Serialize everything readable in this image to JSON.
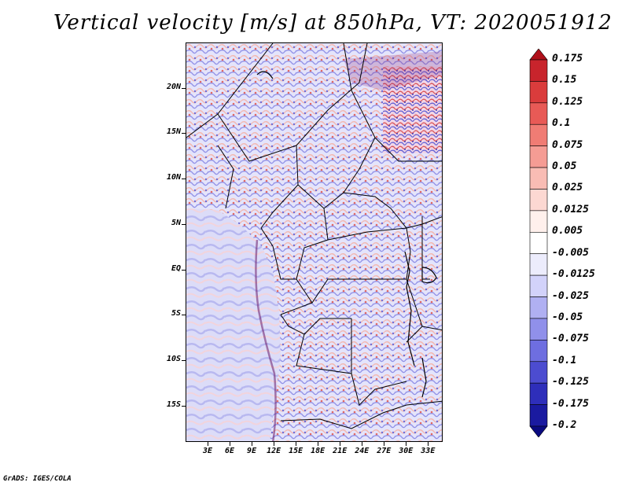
{
  "title": "Vertical velocity [m/s] at 850hPa, VT: 2020051912",
  "credit": "GrADS: IGES/COLA",
  "map": {
    "lat_range": [
      -19,
      25
    ],
    "lon_range": [
      0,
      35
    ],
    "lat_labels": [
      "20N",
      "15N",
      "10N",
      "5N",
      "EQ",
      "5S",
      "10S",
      "15S"
    ],
    "lat_values": [
      20,
      15,
      10,
      5,
      0,
      -5,
      -10,
      -15
    ],
    "lon_labels": [
      "3E",
      "6E",
      "9E",
      "12E",
      "15E",
      "18E",
      "21E",
      "24E",
      "27E",
      "30E",
      "33E"
    ],
    "lon_values": [
      3,
      6,
      9,
      12,
      15,
      18,
      21,
      24,
      27,
      30,
      33
    ]
  },
  "colorbar": {
    "labels": [
      "0.175",
      "0.15",
      "0.125",
      "0.1",
      "0.075",
      "0.05",
      "0.025",
      "0.0125",
      "0.005",
      "-0.005",
      "-0.0125",
      "-0.025",
      "-0.05",
      "-0.075",
      "-0.1",
      "-0.125",
      "-0.175",
      "-0.2"
    ],
    "colors": [
      "#b0101a",
      "#c8242c",
      "#da3c3c",
      "#e85a56",
      "#f07c74",
      "#f59c94",
      "#f9bcb4",
      "#fcd8d2",
      "#fff0ec",
      "#ffffff",
      "#ececfc",
      "#d2d2fa",
      "#b0b0f2",
      "#9090ea",
      "#6e6ee0",
      "#4c4cd0",
      "#2e2eba",
      "#1a1aa0",
      "#0a0a80"
    ]
  }
}
